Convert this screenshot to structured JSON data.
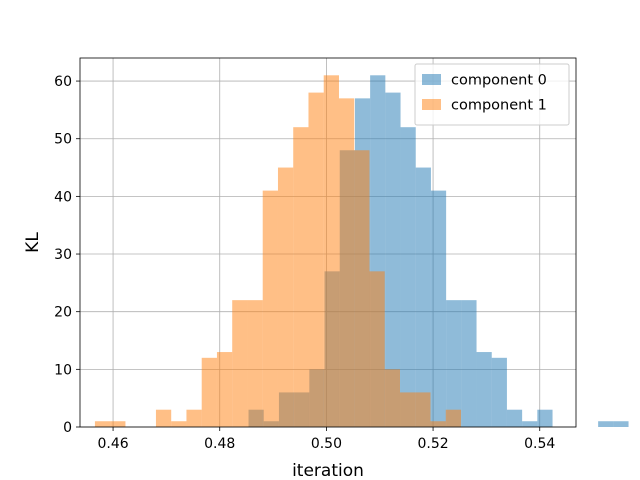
{
  "chart_data": {
    "type": "histogram",
    "xlabel": "iteration",
    "ylabel": "KL",
    "xlim": [
      0.4538,
      0.5468
    ],
    "ylim": [
      0,
      64
    ],
    "xticks": [
      0.46,
      0.48,
      0.5,
      0.52,
      0.54
    ],
    "xtick_labels": [
      "0.46",
      "0.48",
      "0.50",
      "0.52",
      "0.54"
    ],
    "yticks": [
      0,
      10,
      20,
      30,
      40,
      50,
      60
    ],
    "ytick_labels": [
      "0",
      "10",
      "20",
      "30",
      "40",
      "50",
      "60"
    ],
    "grid": true,
    "legend_position": "top-right",
    "series": [
      {
        "name": "component 0",
        "color": "#1f77b4",
        "alpha": 0.5,
        "bin_start": 0.4854,
        "bin_width": 0.00285,
        "counts": [
          3,
          1,
          6,
          6,
          10,
          27,
          48,
          57,
          61,
          58,
          52,
          45,
          41,
          22,
          22,
          13,
          12,
          3,
          1,
          3,
          0,
          0,
          0,
          1,
          1
        ]
      },
      {
        "name": "component 1",
        "color": "#ff7f0e",
        "alpha": 0.5,
        "bin_start": 0.4566,
        "bin_width": 0.00286,
        "counts": [
          1,
          1,
          0,
          0,
          3,
          1,
          3,
          12,
          13,
          22,
          22,
          41,
          45,
          52,
          58,
          61,
          57,
          48,
          27,
          10,
          6,
          6,
          1,
          3
        ]
      }
    ]
  }
}
